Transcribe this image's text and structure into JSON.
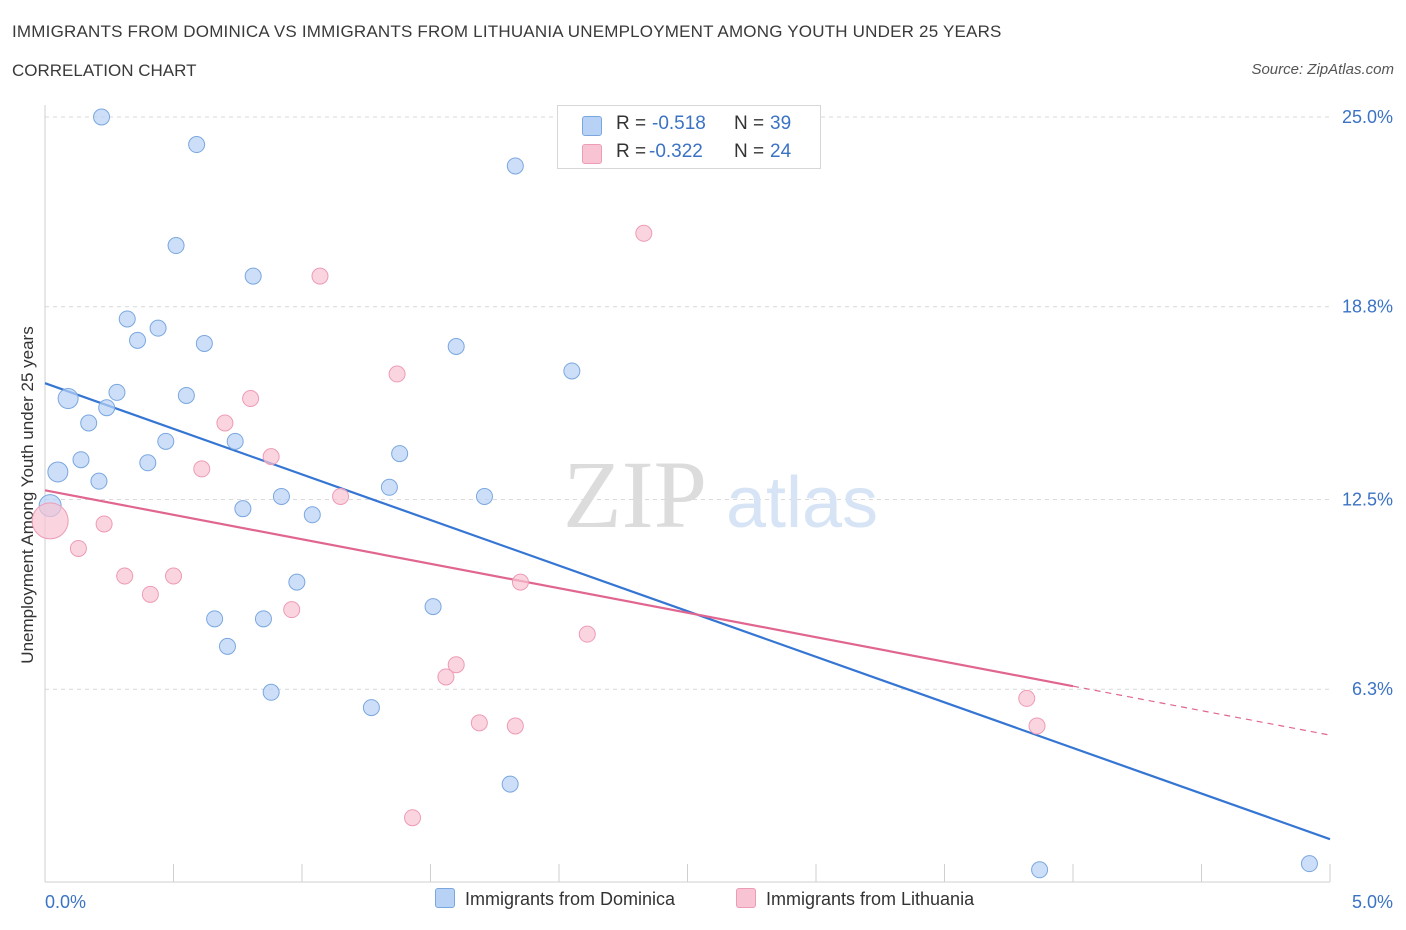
{
  "header": {
    "title": "IMMIGRANTS FROM DOMINICA VS IMMIGRANTS FROM LITHUANIA UNEMPLOYMENT AMONG YOUTH UNDER 25 YEARS",
    "subtitle": "CORRELATION CHART",
    "source": "Source: ZipAtlas.com"
  },
  "watermark": {
    "zip": "ZIP",
    "atlas": "atlas"
  },
  "legend": {
    "rows": [
      {
        "r_label": "R =",
        "r_value": "-0.518",
        "n_label": "N =",
        "n_value": "39",
        "color": "#b8d2f5"
      },
      {
        "r_label": "R =",
        "r_value": "-0.322",
        "n_label": "N =",
        "n_value": "24",
        "color": "#f8c3d3"
      }
    ]
  },
  "bottom_legend": [
    {
      "label": "Immigrants from Dominica",
      "color": "#b8d2f5"
    },
    {
      "label": "Immigrants from Lithuania",
      "color": "#f8c3d3"
    }
  ],
  "chart_data": {
    "type": "scatter",
    "title": "IMMIGRANTS FROM DOMINICA VS IMMIGRANTS FROM LITHUANIA UNEMPLOYMENT AMONG YOUTH UNDER 25 YEARS",
    "subtitle": "CORRELATION CHART",
    "xlabel": "",
    "ylabel": "Unemployment Among Youth under 25 years",
    "xlim": [
      0,
      5
    ],
    "ylim": [
      0,
      25
    ],
    "x_ticks": [
      {
        "value": 0,
        "label": "0.0%"
      },
      {
        "value": 5,
        "label": "5.0%"
      }
    ],
    "y_ticks": [
      {
        "value": 6.3,
        "label": "6.3%"
      },
      {
        "value": 12.5,
        "label": "12.5%"
      },
      {
        "value": 18.8,
        "label": "18.8%"
      },
      {
        "value": 25.0,
        "label": "25.0%"
      }
    ],
    "x_minor_ticks": [
      0.5,
      1.0,
      1.5,
      2.0,
      2.5,
      3.0,
      3.5,
      4.0,
      4.5,
      5.0
    ],
    "grid": "horizontal dashed",
    "legend_position": "top-center",
    "series": [
      {
        "name": "Immigrants from Dominica",
        "color": "#b8d2f5",
        "stroke": "#7aa7e0",
        "line_color": "#3575d3",
        "trend": {
          "x": [
            0,
            5
          ],
          "y": [
            16.3,
            1.4
          ]
        },
        "points": [
          [
            0.22,
            25.0,
            8
          ],
          [
            0.59,
            24.1,
            8
          ],
          [
            1.83,
            23.4,
            8
          ],
          [
            0.51,
            20.8,
            8
          ],
          [
            0.81,
            19.8,
            8
          ],
          [
            0.32,
            18.4,
            8
          ],
          [
            0.44,
            18.1,
            8
          ],
          [
            0.36,
            17.7,
            8
          ],
          [
            0.62,
            17.6,
            8
          ],
          [
            1.6,
            17.5,
            8
          ],
          [
            2.05,
            16.7,
            8
          ],
          [
            0.09,
            15.8,
            10
          ],
          [
            0.28,
            16.0,
            8
          ],
          [
            0.55,
            15.9,
            8
          ],
          [
            0.24,
            15.5,
            8
          ],
          [
            0.17,
            15.0,
            8
          ],
          [
            0.74,
            14.4,
            8
          ],
          [
            0.47,
            14.4,
            8
          ],
          [
            1.38,
            14.0,
            8
          ],
          [
            0.14,
            13.8,
            8
          ],
          [
            0.4,
            13.7,
            8
          ],
          [
            0.05,
            13.4,
            10
          ],
          [
            0.21,
            13.1,
            8
          ],
          [
            1.34,
            12.9,
            8
          ],
          [
            0.92,
            12.6,
            8
          ],
          [
            1.71,
            12.6,
            8
          ],
          [
            0.77,
            12.2,
            8
          ],
          [
            1.04,
            12.0,
            8
          ],
          [
            0.02,
            12.3,
            11
          ],
          [
            0.98,
            9.8,
            8
          ],
          [
            1.51,
            9.0,
            8
          ],
          [
            0.66,
            8.6,
            8
          ],
          [
            0.85,
            8.6,
            8
          ],
          [
            0.71,
            7.7,
            8
          ],
          [
            0.88,
            6.2,
            8
          ],
          [
            1.27,
            5.7,
            8
          ],
          [
            1.81,
            3.2,
            8
          ],
          [
            3.87,
            0.4,
            8
          ],
          [
            4.92,
            0.6,
            8
          ]
        ]
      },
      {
        "name": "Immigrants from Lithuania",
        "color": "#f8c3d3",
        "stroke": "#ee9bb5",
        "line_color": "#e0668f",
        "trend": {
          "x": [
            0,
            4.0,
            5.0
          ],
          "y": [
            12.8,
            6.4,
            4.8
          ],
          "dashed_from_x": 4.0
        },
        "points": [
          [
            2.33,
            21.2,
            8
          ],
          [
            1.07,
            19.8,
            8
          ],
          [
            1.37,
            16.6,
            8
          ],
          [
            0.8,
            15.8,
            8
          ],
          [
            0.7,
            15.0,
            8
          ],
          [
            0.88,
            13.9,
            8
          ],
          [
            0.61,
            13.5,
            8
          ],
          [
            1.15,
            12.6,
            8
          ],
          [
            0.02,
            11.8,
            18
          ],
          [
            0.23,
            11.7,
            8
          ],
          [
            0.13,
            10.9,
            8
          ],
          [
            0.31,
            10.0,
            8
          ],
          [
            0.5,
            10.0,
            8
          ],
          [
            1.85,
            9.8,
            8
          ],
          [
            0.41,
            9.4,
            8
          ],
          [
            0.96,
            8.9,
            8
          ],
          [
            2.11,
            8.1,
            8
          ],
          [
            1.6,
            7.1,
            8
          ],
          [
            1.56,
            6.7,
            8
          ],
          [
            1.69,
            5.2,
            8
          ],
          [
            1.83,
            5.1,
            8
          ],
          [
            3.86,
            5.1,
            8
          ],
          [
            3.82,
            6.0,
            8
          ],
          [
            1.43,
            2.1,
            8
          ]
        ]
      }
    ]
  }
}
